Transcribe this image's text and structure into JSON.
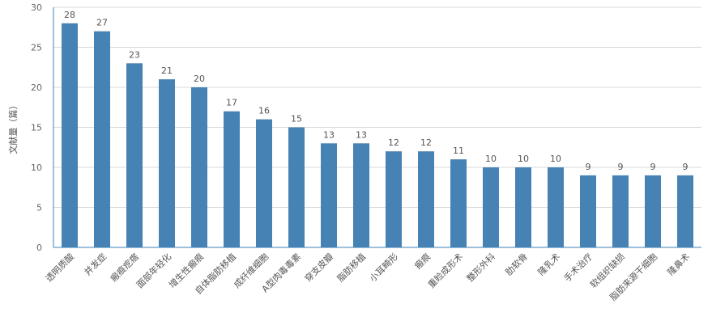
{
  "chart_data": {
    "type": "bar",
    "categories": [
      "透明质酸",
      "并发症",
      "瘢痕疙瘩",
      "面部年轻化",
      "增生性瘢痕",
      "自体脂肪移植",
      "成纤维细胞",
      "A型肉毒毒素",
      "穿支皮瓣",
      "脂肪移植",
      "小耳畸形",
      "瘢痕",
      "重睑成形术",
      "整形外科",
      "肋软骨",
      "隆乳术",
      "手术治疗",
      "软组织缺损",
      "脂肪来源干细胞",
      "隆鼻术"
    ],
    "values": [
      28,
      27,
      23,
      21,
      20,
      17,
      16,
      15,
      13,
      13,
      12,
      12,
      11,
      10,
      10,
      10,
      9,
      9,
      9,
      9
    ],
    "data_labels": [
      "28",
      "27",
      "23",
      "21",
      "20",
      "17",
      "16",
      "15",
      "13",
      "13",
      "12",
      "12",
      "11",
      "10",
      "10",
      "10",
      "9",
      "9",
      "9",
      "9"
    ],
    "title": "",
    "xlabel": "",
    "ylabel": "文献量（篇）",
    "ylim": [
      0,
      30
    ],
    "yticks": [
      0,
      5,
      10,
      15,
      20,
      25,
      30
    ],
    "ytick_labels": [
      "0",
      "5",
      "10",
      "15",
      "20",
      "25",
      "30"
    ],
    "grid": true,
    "legend": "none",
    "colors": {
      "bar": "#4682b4",
      "grid": "#d8d8d8",
      "axis": "#3b82b8",
      "text": "#555555"
    }
  }
}
